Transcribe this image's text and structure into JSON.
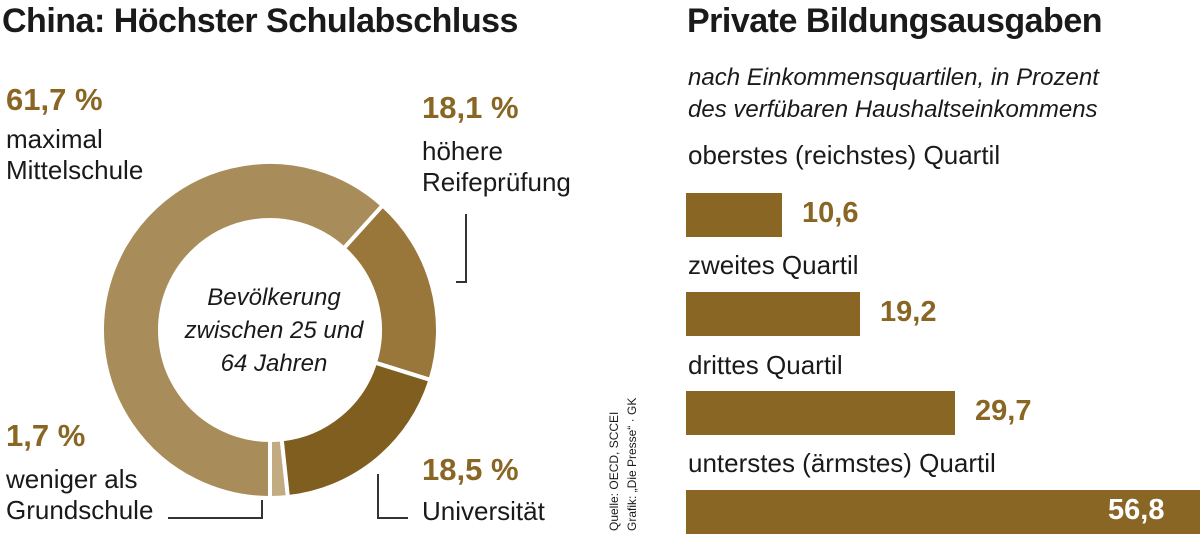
{
  "colors": {
    "text": "#1a1a1a",
    "gold": "#8a6624",
    "bar": "#8a6624",
    "slice_light": "#a88c5a",
    "slice_mid": "#99773a",
    "slice_dark": "#7f5e20",
    "slice_pale": "#c2ab80"
  },
  "left_title": "China: Höchster Schulabschluss",
  "right_title": "Private Bildungsausgaben",
  "right_subtitle": [
    "nach Einkommensquartilen, in Prozent",
    "des verfübaren Haushaltseinkommens"
  ],
  "donut_center": [
    "Bevölkerung",
    "zwischen 25 und",
    "64 Jahren"
  ],
  "source": [
    "Quelle: OECD, SCCEI",
    "Grafik: „Die Presse“ · GK"
  ],
  "chart_data": [
    {
      "type": "pie",
      "variant": "donut",
      "title": "China: Höchster Schulabschluss",
      "center_label": "Bevölkerung zwischen 25 und 64 Jahren",
      "slices": [
        {
          "label_lines": [
            "maximal",
            "Mittelschule"
          ],
          "value": 61.7,
          "display": "61,7 %"
        },
        {
          "label_lines": [
            "höhere",
            "Reifeprüfung"
          ],
          "value": 18.1,
          "display": "18,1 %"
        },
        {
          "label_lines": [
            "Universität"
          ],
          "value": 18.5,
          "display": "18,5 %"
        },
        {
          "label_lines": [
            "weniger als",
            "Grundschule"
          ],
          "value": 1.7,
          "display": "1,7 %"
        }
      ]
    },
    {
      "type": "bar",
      "orientation": "horizontal",
      "title": "Private Bildungsausgaben",
      "subtitle": "nach Einkommensquartilen, in Prozent des verfübaren Haushaltseinkommens",
      "categories": [
        "oberstes (reichstes) Quartil",
        "zweites Quartil",
        "drittes Quartil",
        "unterstes (ärmstes) Quartil"
      ],
      "values": [
        10.6,
        19.2,
        29.7,
        56.8
      ],
      "value_labels": [
        "10,6",
        "19,2",
        "29,7",
        "56,8"
      ],
      "xlim": [
        0,
        56.8
      ]
    }
  ]
}
